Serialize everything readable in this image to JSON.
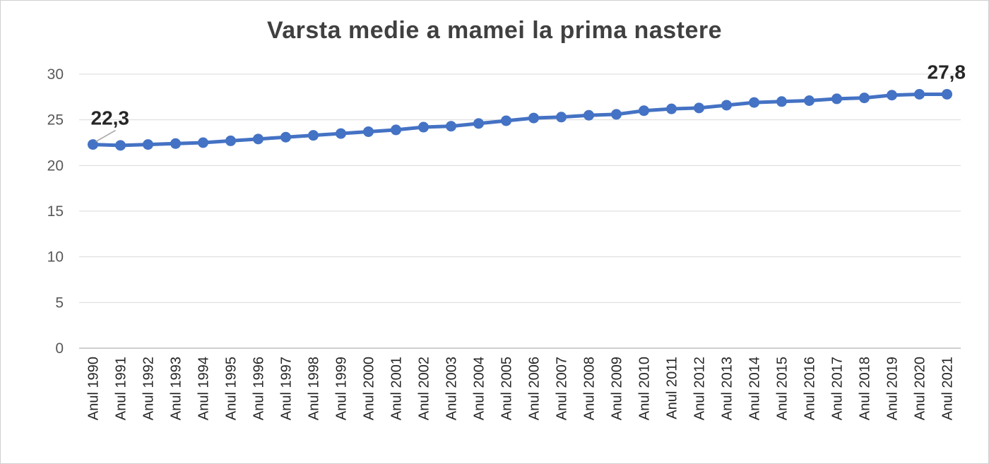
{
  "chart_data": {
    "type": "line",
    "title": "Varsta medie a mamei la prima nastere",
    "xlabel": "",
    "ylabel": "",
    "ylim": [
      0,
      30
    ],
    "yticks": [
      0,
      5,
      10,
      15,
      20,
      25,
      30
    ],
    "grid": true,
    "legend": "none",
    "categories": [
      "Anul 1990",
      "Anul 1991",
      "Anul 1992",
      "Anul 1993",
      "Anul 1994",
      "Anul 1995",
      "Anul 1996",
      "Anul 1997",
      "Anul 1998",
      "Anul 1999",
      "Anul 2000",
      "Anul 2001",
      "Anul 2002",
      "Anul 2003",
      "Anul 2004",
      "Anul 2005",
      "Anul 2006",
      "Anul 2007",
      "Anul 2008",
      "Anul 2009",
      "Anul 2010",
      "Anul 2011",
      "Anul 2012",
      "Anul 2013",
      "Anul 2014",
      "Anul 2015",
      "Anul 2016",
      "Anul 2017",
      "Anul 2018",
      "Anul 2019",
      "Anul 2020",
      "Anul 2021"
    ],
    "series": [
      {
        "values": [
          22.3,
          22.2,
          22.3,
          22.4,
          22.5,
          22.7,
          22.9,
          23.1,
          23.3,
          23.5,
          23.7,
          23.9,
          24.2,
          24.3,
          24.6,
          24.9,
          25.2,
          25.3,
          25.5,
          25.6,
          26.0,
          26.2,
          26.3,
          26.6,
          26.9,
          27.0,
          27.1,
          27.3,
          27.4,
          27.7,
          27.8,
          27.8
        ],
        "color": "#4472c4"
      }
    ],
    "annotations": [
      {
        "index": 0,
        "text": "22,3"
      },
      {
        "index": 31,
        "text": "27,8"
      }
    ]
  }
}
